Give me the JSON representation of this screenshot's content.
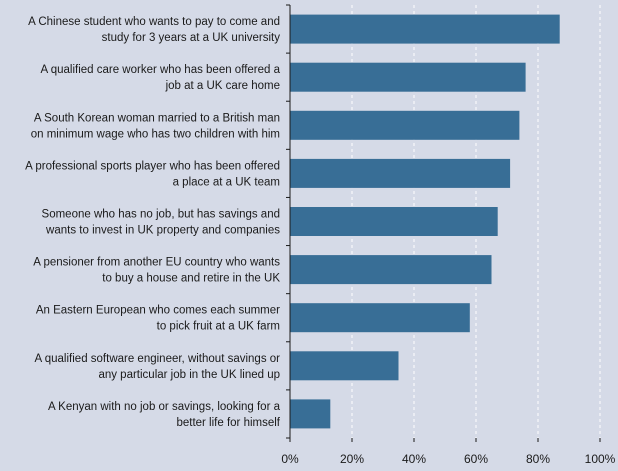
{
  "colors": {
    "background": "#d5dae7",
    "bar": "#386e96",
    "grid": "#ffffff",
    "axis": "#1a1a1a"
  },
  "chart_data": {
    "type": "bar",
    "orientation": "horizontal",
    "grid": "vertical-dashed",
    "xlim": [
      0,
      100
    ],
    "x_ticks": [
      "0%",
      "20%",
      "40%",
      "60%",
      "80%",
      "100%"
    ],
    "categories": [
      [
        "A Chinese student who wants to pay to come and",
        "study for 3 years at a UK university"
      ],
      [
        "A qualified care worker who has been offered a",
        "job at a UK care home"
      ],
      [
        "A South Korean woman married to a British man",
        "on minimum wage who has two children with him"
      ],
      [
        "A professional sports player who has been offered",
        "a place at a UK team"
      ],
      [
        "Someone who has no job, but has savings and",
        "wants to invest in UK property and companies"
      ],
      [
        "A pensioner from another EU country who wants",
        "to buy a house and retire in the UK"
      ],
      [
        "An Eastern European who comes each summer",
        "to pick fruit at a UK farm"
      ],
      [
        "A qualified software engineer, without savings or",
        "any particular job in the UK lined up"
      ],
      [
        "A Kenyan with no job or savings, looking for a",
        "better life for himself"
      ]
    ],
    "values": [
      87,
      76,
      74,
      71,
      67,
      65,
      58,
      35,
      13
    ]
  }
}
